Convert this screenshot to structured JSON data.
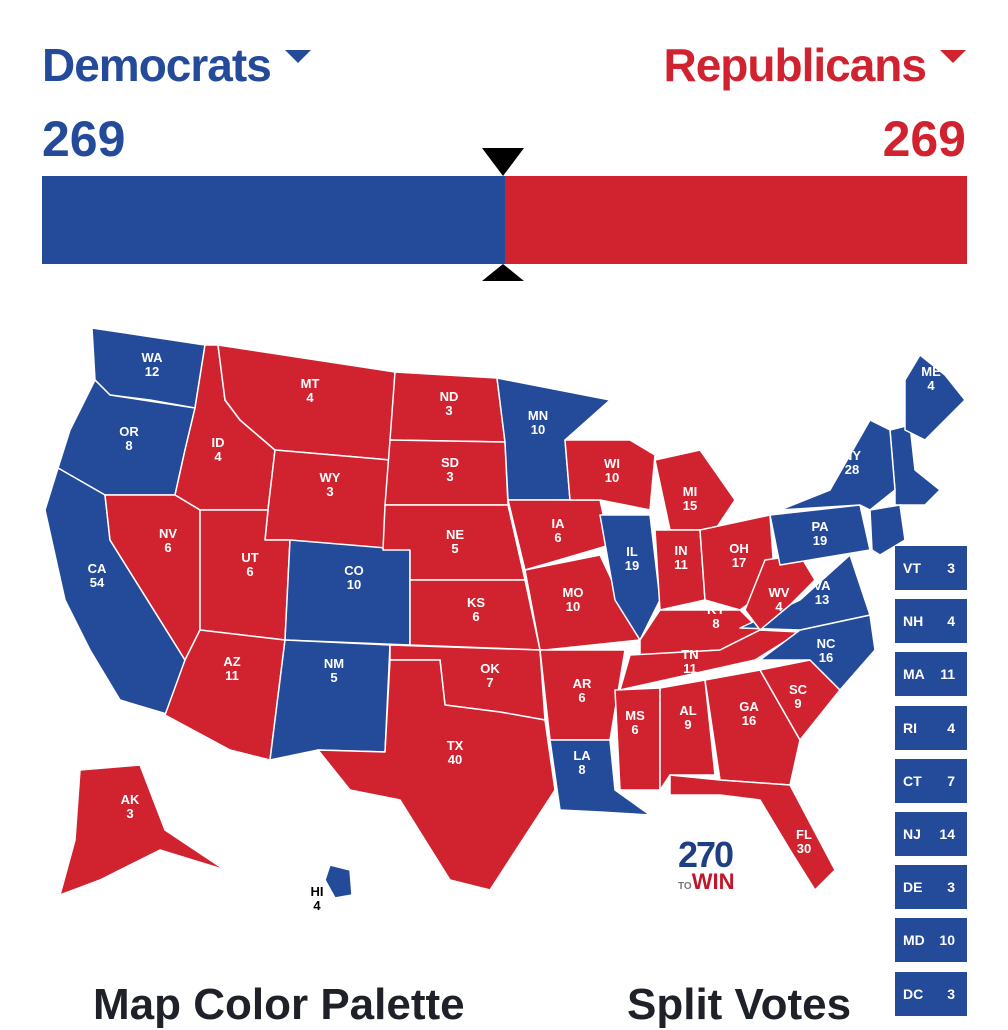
{
  "header": {
    "dem_label": "Democrats",
    "rep_label": "Republicans",
    "dem_total": "269",
    "rep_total": "269"
  },
  "colors": {
    "dem": "#244a9a",
    "rep": "#d0232f",
    "border": "#ffffff"
  },
  "bar": {
    "dem_votes": 269,
    "rep_votes": 269,
    "threshold": 270
  },
  "states": [
    {
      "abbr": "WA",
      "votes": "12",
      "party": "dem"
    },
    {
      "abbr": "OR",
      "votes": "8",
      "party": "dem"
    },
    {
      "abbr": "CA",
      "votes": "54",
      "party": "dem"
    },
    {
      "abbr": "ID",
      "votes": "4",
      "party": "rep"
    },
    {
      "abbr": "NV",
      "votes": "6",
      "party": "rep"
    },
    {
      "abbr": "MT",
      "votes": "4",
      "party": "rep"
    },
    {
      "abbr": "WY",
      "votes": "3",
      "party": "rep"
    },
    {
      "abbr": "UT",
      "votes": "6",
      "party": "rep"
    },
    {
      "abbr": "AZ",
      "votes": "11",
      "party": "rep"
    },
    {
      "abbr": "CO",
      "votes": "10",
      "party": "dem"
    },
    {
      "abbr": "NM",
      "votes": "5",
      "party": "dem"
    },
    {
      "abbr": "ND",
      "votes": "3",
      "party": "rep"
    },
    {
      "abbr": "SD",
      "votes": "3",
      "party": "rep"
    },
    {
      "abbr": "NE",
      "votes": "5",
      "party": "rep"
    },
    {
      "abbr": "KS",
      "votes": "6",
      "party": "rep"
    },
    {
      "abbr": "OK",
      "votes": "7",
      "party": "rep"
    },
    {
      "abbr": "TX",
      "votes": "40",
      "party": "rep"
    },
    {
      "abbr": "MN",
      "votes": "10",
      "party": "dem"
    },
    {
      "abbr": "IA",
      "votes": "6",
      "party": "rep"
    },
    {
      "abbr": "MO",
      "votes": "10",
      "party": "rep"
    },
    {
      "abbr": "AR",
      "votes": "6",
      "party": "rep"
    },
    {
      "abbr": "LA",
      "votes": "8",
      "party": "dem"
    },
    {
      "abbr": "WI",
      "votes": "10",
      "party": "rep"
    },
    {
      "abbr": "IL",
      "votes": "19",
      "party": "dem"
    },
    {
      "abbr": "MI",
      "votes": "15",
      "party": "rep"
    },
    {
      "abbr": "IN",
      "votes": "11",
      "party": "rep"
    },
    {
      "abbr": "OH",
      "votes": "17",
      "party": "rep"
    },
    {
      "abbr": "KY",
      "votes": "8",
      "party": "rep"
    },
    {
      "abbr": "TN",
      "votes": "11",
      "party": "rep"
    },
    {
      "abbr": "MS",
      "votes": "6",
      "party": "rep"
    },
    {
      "abbr": "AL",
      "votes": "9",
      "party": "rep"
    },
    {
      "abbr": "GA",
      "votes": "16",
      "party": "rep"
    },
    {
      "abbr": "FL",
      "votes": "30",
      "party": "rep"
    },
    {
      "abbr": "SC",
      "votes": "9",
      "party": "rep"
    },
    {
      "abbr": "NC",
      "votes": "16",
      "party": "dem"
    },
    {
      "abbr": "VA",
      "votes": "13",
      "party": "dem"
    },
    {
      "abbr": "WV",
      "votes": "4",
      "party": "rep"
    },
    {
      "abbr": "PA",
      "votes": "19",
      "party": "dem"
    },
    {
      "abbr": "NY",
      "votes": "28",
      "party": "dem"
    },
    {
      "abbr": "ME",
      "votes": "4",
      "party": "dem"
    },
    {
      "abbr": "AK",
      "votes": "3",
      "party": "rep"
    },
    {
      "abbr": "HI",
      "votes": "4",
      "party": "dem"
    }
  ],
  "small_states": [
    {
      "abbr": "VT",
      "votes": "3",
      "party": "dem"
    },
    {
      "abbr": "NH",
      "votes": "4",
      "party": "dem"
    },
    {
      "abbr": "MA",
      "votes": "11",
      "party": "dem"
    },
    {
      "abbr": "RI",
      "votes": "4",
      "party": "dem"
    },
    {
      "abbr": "CT",
      "votes": "7",
      "party": "dem"
    },
    {
      "abbr": "NJ",
      "votes": "14",
      "party": "dem"
    },
    {
      "abbr": "DE",
      "votes": "3",
      "party": "dem"
    },
    {
      "abbr": "MD",
      "votes": "10",
      "party": "dem"
    },
    {
      "abbr": "DC",
      "votes": "3",
      "party": "dem"
    }
  ],
  "logo": {
    "number": "270",
    "to": "TO",
    "win": "WIN"
  },
  "sections": {
    "palette": "Map Color Palette",
    "split": "Split Votes"
  }
}
